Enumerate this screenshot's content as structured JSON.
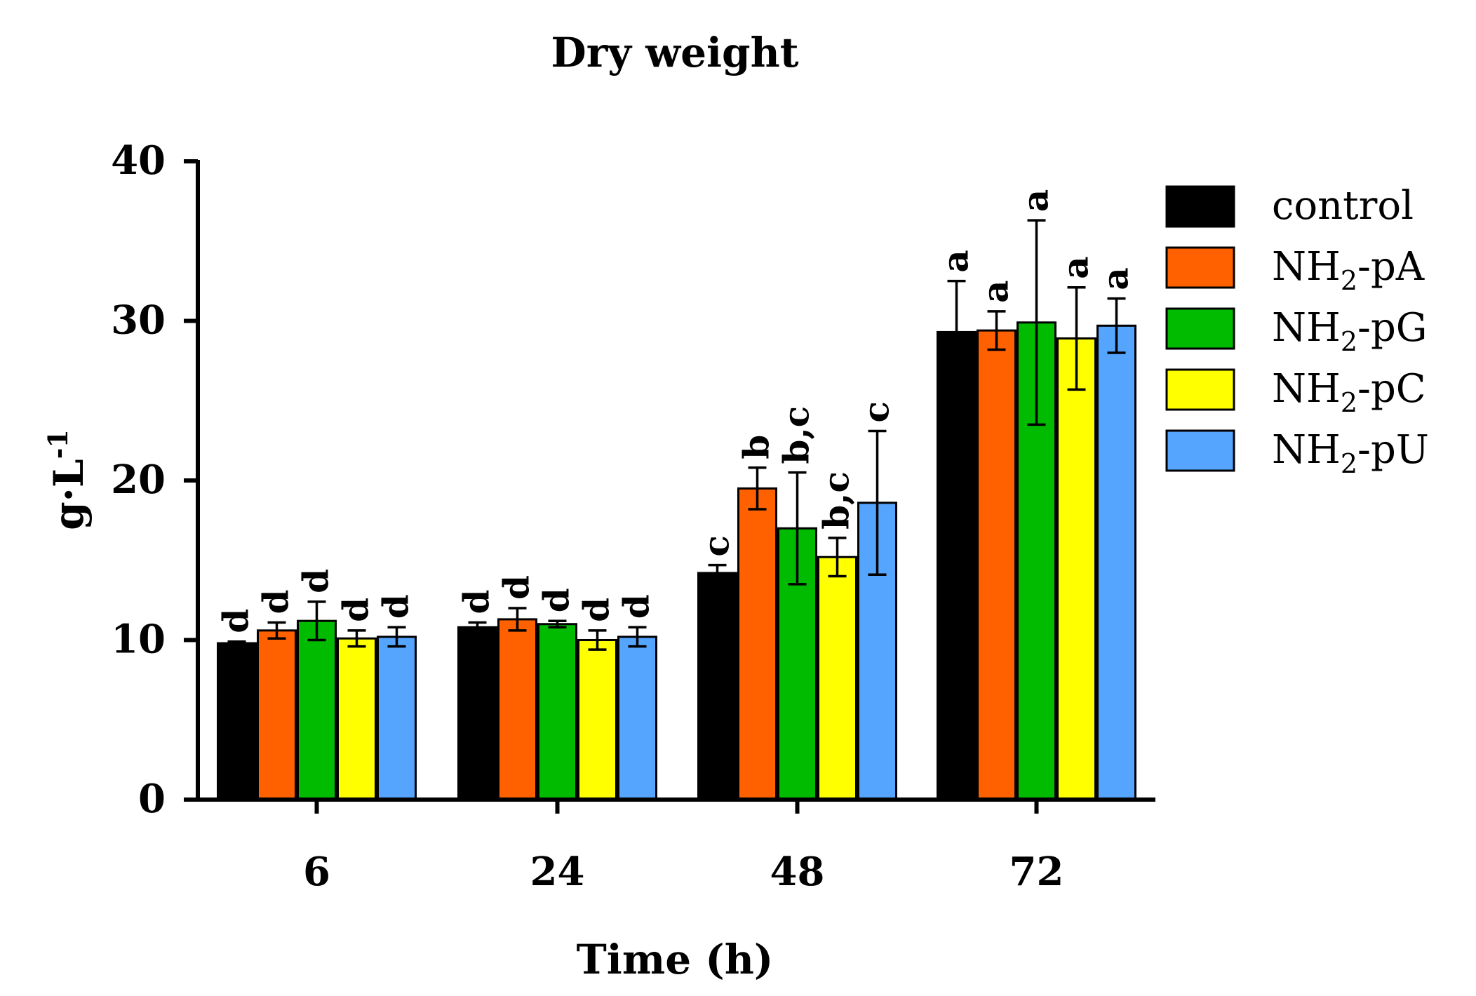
{
  "chart_data": {
    "type": "bar",
    "title": "Dry weight",
    "xlabel": "Time (h)",
    "ylabel": "g·L",
    "ylabel_sup": "-1",
    "ylim": [
      0,
      40
    ],
    "yticks": [
      0,
      10,
      20,
      30,
      40
    ],
    "categories": [
      "6",
      "24",
      "48",
      "72"
    ],
    "series": [
      {
        "name": "control",
        "label_main": "control",
        "label_sub": "",
        "label_rest": "",
        "color": "#000000",
        "values": [
          9.8,
          10.8,
          14.2,
          29.3
        ],
        "errors": [
          0.1,
          0.3,
          0.5,
          3.2
        ],
        "letters": [
          "d",
          "d",
          "c",
          "a"
        ]
      },
      {
        "name": "NH2-pA",
        "label_main": "NH",
        "label_sub": "2",
        "label_rest": "-pA",
        "color": "#FF6000",
        "values": [
          10.6,
          11.3,
          19.5,
          29.4
        ],
        "errors": [
          0.5,
          0.7,
          1.3,
          1.2
        ],
        "letters": [
          "d",
          "d",
          "b",
          "a"
        ]
      },
      {
        "name": "NH2-pG",
        "label_main": "NH",
        "label_sub": "2",
        "label_rest": "-pG",
        "color": "#00BB00",
        "values": [
          11.2,
          11.0,
          17.0,
          29.9
        ],
        "errors": [
          1.2,
          0.2,
          3.5,
          6.4
        ],
        "letters": [
          "d",
          "d",
          "b,c",
          "a"
        ]
      },
      {
        "name": "NH2-pC",
        "label_main": "NH",
        "label_sub": "2",
        "label_rest": "-pC",
        "color": "#FFFF00",
        "values": [
          10.1,
          10.0,
          15.2,
          28.9
        ],
        "errors": [
          0.5,
          0.6,
          1.2,
          3.2
        ],
        "letters": [
          "d",
          "d",
          "b,c",
          "a"
        ]
      },
      {
        "name": "NH2-pU",
        "label_main": "NH",
        "label_sub": "2",
        "label_rest": "-pU",
        "color": "#55A5FF",
        "values": [
          10.2,
          10.2,
          18.6,
          29.7
        ],
        "errors": [
          0.6,
          0.6,
          4.5,
          1.7
        ],
        "letters": [
          "d",
          "d",
          "c",
          "a"
        ]
      }
    ]
  }
}
